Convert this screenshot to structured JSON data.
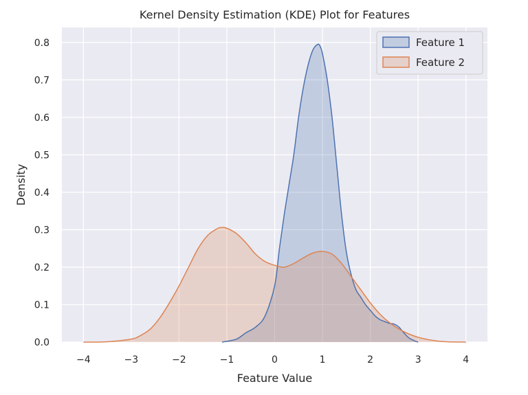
{
  "chart_data": {
    "type": "area",
    "title": "Kernel Density Estimation (KDE) Plot for Features",
    "xlabel": "Feature Value",
    "ylabel": "Density",
    "xlim": [
      -4.45,
      4.45
    ],
    "ylim": [
      0,
      0.84
    ],
    "xticks": [
      -4,
      -3,
      -2,
      -1,
      0,
      1,
      2,
      3,
      4
    ],
    "yticks": [
      0.0,
      0.1,
      0.2,
      0.3,
      0.4,
      0.5,
      0.6,
      0.7,
      0.8
    ],
    "xtick_labels": [
      "−4",
      "−3",
      "−2",
      "−1",
      "0",
      "1",
      "2",
      "3",
      "4"
    ],
    "ytick_labels": [
      "0.0",
      "0.1",
      "0.2",
      "0.3",
      "0.4",
      "0.5",
      "0.6",
      "0.7",
      "0.8"
    ],
    "grid": true,
    "legend_position": "top-right",
    "series": [
      {
        "name": "Feature 1",
        "color": "#4c72b0",
        "x": [
          -1.1,
          -0.8,
          -0.6,
          -0.4,
          -0.2,
          0.0,
          0.1,
          0.2,
          0.3,
          0.4,
          0.5,
          0.6,
          0.7,
          0.8,
          0.9,
          0.95,
          1.0,
          1.1,
          1.2,
          1.3,
          1.4,
          1.5,
          1.6,
          1.7,
          1.8,
          1.9,
          2.0,
          2.1,
          2.2,
          2.3,
          2.4,
          2.5,
          2.6,
          2.7,
          2.8,
          2.9,
          3.0
        ],
        "y": [
          0.0,
          0.008,
          0.025,
          0.04,
          0.07,
          0.15,
          0.25,
          0.34,
          0.42,
          0.5,
          0.6,
          0.68,
          0.74,
          0.78,
          0.795,
          0.79,
          0.77,
          0.7,
          0.6,
          0.47,
          0.34,
          0.24,
          0.18,
          0.14,
          0.12,
          0.1,
          0.085,
          0.07,
          0.06,
          0.055,
          0.05,
          0.048,
          0.04,
          0.025,
          0.012,
          0.005,
          0.0
        ]
      },
      {
        "name": "Feature 2",
        "color": "#dd8452",
        "x": [
          -4.0,
          -3.5,
          -3.0,
          -2.8,
          -2.6,
          -2.4,
          -2.2,
          -2.0,
          -1.8,
          -1.6,
          -1.4,
          -1.2,
          -1.1,
          -1.0,
          -0.8,
          -0.6,
          -0.4,
          -0.2,
          0.0,
          0.2,
          0.4,
          0.6,
          0.8,
          1.0,
          1.2,
          1.4,
          1.6,
          1.8,
          2.0,
          2.2,
          2.4,
          2.6,
          2.8,
          3.0,
          3.2,
          3.4,
          3.6,
          3.8,
          4.0
        ],
        "y": [
          0.0,
          0.001,
          0.008,
          0.018,
          0.035,
          0.065,
          0.105,
          0.15,
          0.2,
          0.25,
          0.285,
          0.303,
          0.306,
          0.304,
          0.29,
          0.265,
          0.235,
          0.215,
          0.205,
          0.2,
          0.21,
          0.225,
          0.238,
          0.242,
          0.235,
          0.21,
          0.175,
          0.14,
          0.105,
          0.075,
          0.052,
          0.035,
          0.022,
          0.013,
          0.007,
          0.003,
          0.001,
          0.0003,
          0.0
        ]
      }
    ]
  }
}
